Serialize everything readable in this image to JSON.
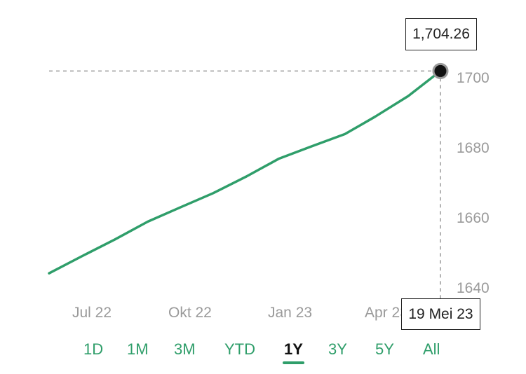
{
  "chart_data": {
    "type": "line",
    "x": [
      "2022-05-19",
      "2022-06-19",
      "2022-07-19",
      "2022-08-19",
      "2022-09-19",
      "2022-10-19",
      "2022-11-19",
      "2022-12-19",
      "2023-01-19",
      "2023-02-19",
      "2023-03-19",
      "2023-04-19",
      "2023-05-19"
    ],
    "series": [
      {
        "values": [
          1644.7,
          1649.8,
          1654.6,
          1659.9,
          1664.2,
          1668.3,
          1673.2,
          1678.4,
          1682.1,
          1685.7,
          1690.8,
          1696.9,
          1704.26
        ]
      }
    ],
    "ylim": [
      1640,
      1706
    ],
    "y_ticks": [
      "1640",
      "1660",
      "1680",
      "1700"
    ],
    "x_ticks": [
      "Jul 22",
      "Okt 22",
      "Jan 23",
      "Apr 23"
    ],
    "grid": false,
    "line_color": "#2f9e6a"
  },
  "tooltip": {
    "value": "1,704.26",
    "date": "19 Mei 23"
  },
  "ranges": [
    "1D",
    "1M",
    "3M",
    "YTD",
    "1Y",
    "3Y",
    "5Y",
    "All"
  ],
  "active_range": "1Y",
  "accent_color": "#2f9e6a"
}
